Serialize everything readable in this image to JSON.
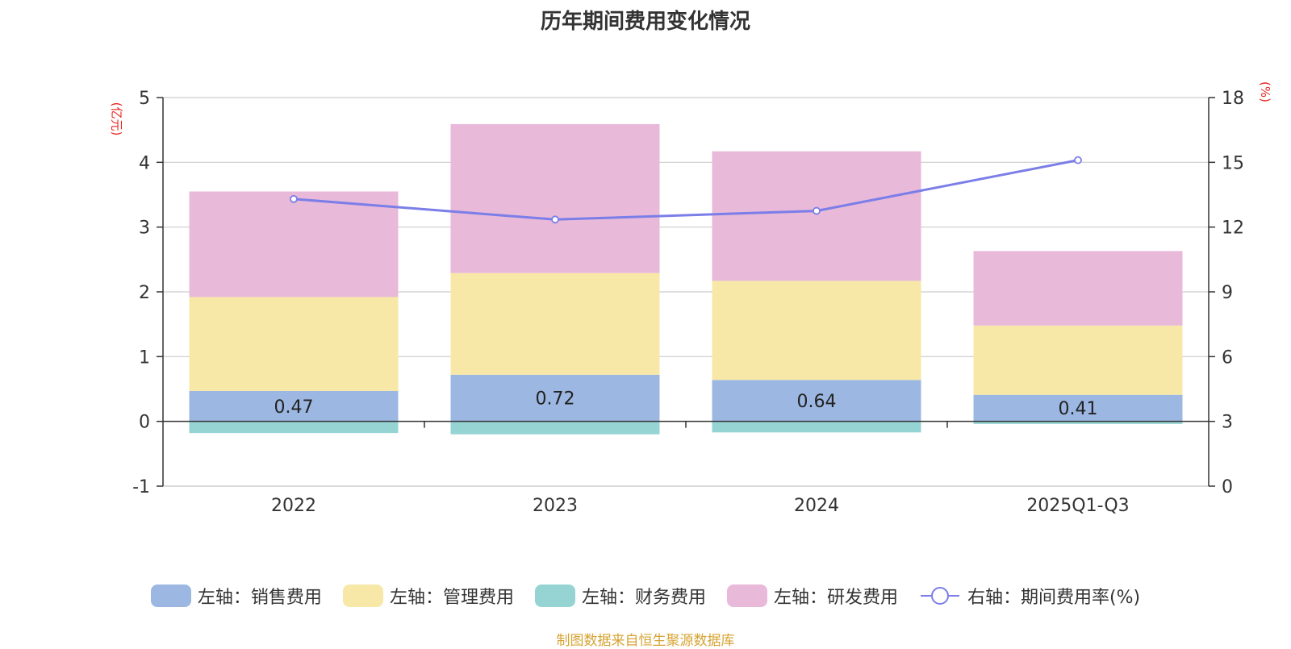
{
  "title": "历年期间费用变化情况",
  "left_unit": "(亿元)",
  "right_unit": "(%)",
  "source_note": "制图数据来自恒生聚源数据库",
  "colors": {
    "sales": "#9cb8e2",
    "admin": "#f7e8a8",
    "finance": "#96d4d4",
    "rnd": "#e8b9d9",
    "rate_line": "#7b7ee8",
    "axis": "#333333",
    "grid": "#cccccc"
  },
  "chart_data": {
    "type": "bar",
    "categories": [
      "2022",
      "2023",
      "2024",
      "2025Q1-Q3"
    ],
    "series": [
      {
        "name": "左轴：销售费用",
        "key": "sales",
        "axis": "left",
        "stack": true,
        "values": [
          0.47,
          0.72,
          0.64,
          0.41
        ],
        "labels": [
          "0.47",
          "0.72",
          "0.64",
          "0.41"
        ]
      },
      {
        "name": "左轴：管理费用",
        "key": "admin",
        "axis": "left",
        "stack": true,
        "values": [
          1.45,
          1.57,
          1.53,
          1.07
        ]
      },
      {
        "name": "左轴：财务费用",
        "key": "finance",
        "axis": "left",
        "stack": true,
        "values": [
          -0.18,
          -0.2,
          -0.17,
          -0.04
        ]
      },
      {
        "name": "左轴：研发费用",
        "key": "rnd",
        "axis": "left",
        "stack": true,
        "values": [
          1.63,
          2.3,
          2.0,
          1.15
        ]
      },
      {
        "name": "右轴：期间费用率(%)",
        "key": "rate_line",
        "axis": "right",
        "type": "line",
        "values": [
          13.3,
          12.35,
          12.75,
          15.1
        ]
      }
    ],
    "left_axis": {
      "min": -1,
      "max": 5,
      "ticks": [
        "-1",
        "0",
        "1",
        "2",
        "3",
        "4",
        "5"
      ]
    },
    "right_axis": {
      "min": 0,
      "max": 18,
      "ticks": [
        "0",
        "3",
        "6",
        "9",
        "12",
        "15",
        "18"
      ]
    }
  }
}
